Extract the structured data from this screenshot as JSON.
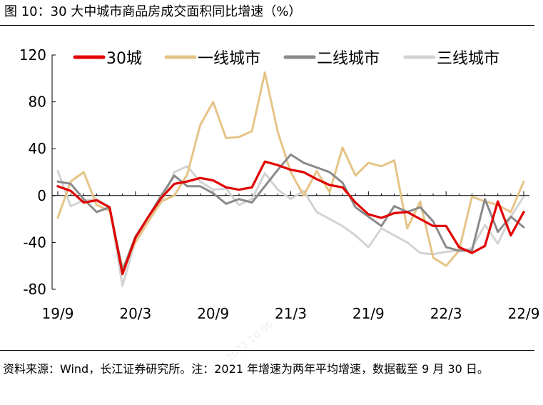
{
  "source": "资料来源：Wind，长江证券研究所。注：2021 年增速为两年平均增速，数据截至 9 月 30 日。",
  "watermark": "2022.10.06",
  "chart_data": {
    "type": "line",
    "title": "图  10：30 大中城市商品房成交面积同比增速（%）",
    "xlabel": "",
    "ylabel": "",
    "ylim": [
      -80,
      120
    ],
    "yticks": [
      120,
      80,
      40,
      0,
      -40,
      -80
    ],
    "x": [
      "19/9",
      "19/10",
      "19/11",
      "19/12",
      "20/1",
      "20/2",
      "20/3",
      "20/4",
      "20/5",
      "20/6",
      "20/7",
      "20/8",
      "20/9",
      "20/10",
      "20/11",
      "20/12",
      "21/1",
      "21/2",
      "21/3",
      "21/4",
      "21/5",
      "21/6",
      "21/7",
      "21/8",
      "21/9",
      "21/10",
      "21/11",
      "21/12",
      "22/1",
      "22/2",
      "22/3",
      "22/4",
      "22/5",
      "22/6",
      "22/7",
      "22/8",
      "22/9"
    ],
    "xtick_labels": [
      "19/9",
      "20/3",
      "20/9",
      "21/3",
      "21/9",
      "22/3",
      "22/9"
    ],
    "xtick_index": [
      0,
      6,
      12,
      18,
      24,
      30,
      36
    ],
    "colors": {
      "s30": "#e10000",
      "tier1": "#e6c487",
      "tier2": "#8a8a8a",
      "tier3": "#d3d3d3"
    },
    "series": [
      {
        "name": "30城",
        "key": "s30",
        "values": [
          8,
          4,
          -6,
          -4,
          -10,
          -67,
          -36,
          -18,
          -2,
          10,
          12,
          15,
          13,
          7,
          5,
          7,
          29,
          26,
          22,
          20,
          14,
          9,
          7,
          -6,
          -16,
          -19,
          -15,
          -14,
          -20,
          -26,
          -26,
          -44,
          -49,
          -43,
          -5,
          -34,
          -14
        ]
      },
      {
        "name": "一线城市",
        "key": "tier1",
        "values": [
          -19,
          12,
          20,
          -8,
          -13,
          -62,
          -40,
          -22,
          -5,
          0,
          18,
          60,
          80,
          49,
          50,
          55,
          105,
          54,
          20,
          0,
          21,
          3,
          41,
          17,
          28,
          25,
          30,
          -28,
          -5,
          -53,
          -60,
          -47,
          -1,
          -5,
          -8,
          -14,
          12
        ]
      },
      {
        "name": "二线城市",
        "key": "tier2",
        "values": [
          12,
          10,
          -3,
          -14,
          -10,
          -64,
          -35,
          -18,
          0,
          17,
          8,
          8,
          2,
          -7,
          -3,
          -6,
          8,
          22,
          35,
          28,
          24,
          20,
          11,
          -10,
          -18,
          -26,
          -9,
          -14,
          -10,
          -22,
          -44,
          -47,
          -47,
          -3,
          -31,
          -18,
          -27
        ]
      },
      {
        "name": "三线城市",
        "key": "tier3",
        "values": [
          21,
          -9,
          -4,
          -3,
          -10,
          -77,
          -38,
          -20,
          -6,
          20,
          25,
          12,
          5,
          6,
          -8,
          -3,
          19,
          5,
          -3,
          4,
          -14,
          -20,
          -26,
          -34,
          -44,
          -28,
          -34,
          -40,
          -49,
          -50,
          -48,
          -47,
          -45,
          -25,
          -41,
          -18,
          -1
        ]
      }
    ]
  }
}
